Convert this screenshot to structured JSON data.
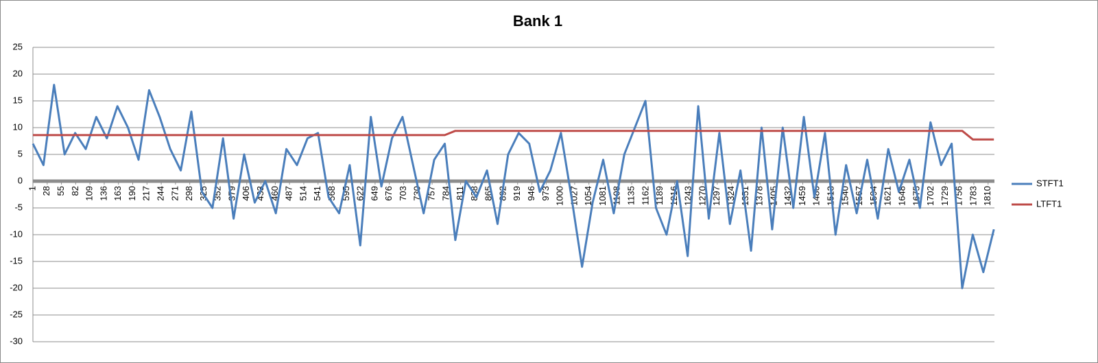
{
  "chart_data": {
    "type": "line",
    "title": "Bank 1",
    "x": [
      1,
      21,
      41,
      61,
      81,
      101,
      121,
      141,
      161,
      181,
      201,
      221,
      241,
      261,
      281,
      301,
      321,
      341,
      361,
      381,
      401,
      421,
      441,
      461,
      481,
      501,
      521,
      541,
      561,
      581,
      601,
      621,
      641,
      661,
      681,
      701,
      721,
      741,
      761,
      781,
      801,
      821,
      841,
      861,
      881,
      901,
      921,
      941,
      961,
      981,
      1001,
      1021,
      1041,
      1061,
      1081,
      1101,
      1121,
      1141,
      1161,
      1181,
      1201,
      1221,
      1241,
      1261,
      1281,
      1301,
      1321,
      1341,
      1361,
      1381,
      1401,
      1421,
      1441,
      1461,
      1481,
      1501,
      1521,
      1541,
      1561,
      1581,
      1601,
      1621,
      1641,
      1661,
      1681,
      1701,
      1721,
      1741,
      1761,
      1781,
      1801,
      1821
    ],
    "series": [
      {
        "name": "STFT1",
        "color": "#4a7ebb",
        "values": [
          7,
          3,
          18,
          5,
          9,
          6,
          12,
          8,
          14,
          10,
          4,
          17,
          12,
          6,
          2,
          13,
          -2,
          -5,
          8,
          -7,
          5,
          -4,
          0,
          -6,
          6,
          3,
          8,
          9,
          -3,
          -6,
          3,
          -12,
          12,
          -1,
          8,
          12,
          3,
          -6,
          4,
          7,
          -11,
          0,
          -3,
          2,
          -8,
          5,
          9,
          7,
          -2,
          2,
          9,
          -3,
          -16,
          -4,
          4,
          -6,
          5,
          10,
          15,
          -5,
          -10,
          0,
          -14,
          14,
          -7,
          9,
          -8,
          2,
          -13,
          10,
          -9,
          10,
          -5,
          12,
          -3,
          9,
          -10,
          3,
          -6,
          4,
          -7,
          6,
          -2,
          4,
          -5,
          11,
          3,
          7,
          -20,
          -10,
          -17,
          -9
        ]
      },
      {
        "name": "LTFT1",
        "color": "#be4b48",
        "values": [
          8.6,
          8.6,
          8.6,
          8.6,
          8.6,
          8.6,
          8.6,
          8.6,
          8.6,
          8.6,
          8.6,
          8.6,
          8.6,
          8.6,
          8.6,
          8.6,
          8.6,
          8.6,
          8.6,
          8.6,
          8.6,
          8.6,
          8.6,
          8.6,
          8.6,
          8.6,
          8.6,
          8.6,
          8.6,
          8.6,
          8.6,
          8.6,
          8.6,
          8.6,
          8.6,
          8.6,
          8.6,
          8.6,
          8.6,
          8.6,
          9.4,
          9.4,
          9.4,
          9.4,
          9.4,
          9.4,
          9.4,
          9.4,
          9.4,
          9.4,
          9.4,
          9.4,
          9.4,
          9.4,
          9.4,
          9.4,
          9.4,
          9.4,
          9.4,
          9.4,
          9.4,
          9.4,
          9.4,
          9.4,
          9.4,
          9.4,
          9.4,
          9.4,
          9.4,
          9.4,
          9.4,
          9.4,
          9.4,
          9.4,
          9.4,
          9.4,
          9.4,
          9.4,
          9.4,
          9.4,
          9.4,
          9.4,
          9.4,
          9.4,
          9.4,
          9.4,
          9.4,
          9.4,
          9.4,
          7.8,
          7.8,
          7.8
        ]
      }
    ],
    "xlim": [
      1,
      1822
    ],
    "xticks": [
      1,
      28,
      55,
      82,
      109,
      136,
      163,
      190,
      217,
      244,
      271,
      298,
      325,
      352,
      379,
      406,
      433,
      460,
      487,
      514,
      541,
      568,
      595,
      622,
      649,
      676,
      703,
      730,
      757,
      784,
      811,
      838,
      865,
      892,
      919,
      946,
      973,
      1000,
      1027,
      1054,
      1081,
      1108,
      1135,
      1162,
      1189,
      1216,
      1243,
      1270,
      1297,
      1324,
      1351,
      1378,
      1405,
      1432,
      1459,
      1486,
      1513,
      1540,
      1567,
      1594,
      1621,
      1648,
      1675,
      1702,
      1729,
      1756,
      1783,
      1810
    ],
    "ylim": [
      -30,
      25
    ],
    "yticks": [
      -30,
      -25,
      -20,
      -15,
      -10,
      -5,
      0,
      5,
      10,
      15,
      20,
      25
    ],
    "grid": true,
    "legend": "right"
  }
}
